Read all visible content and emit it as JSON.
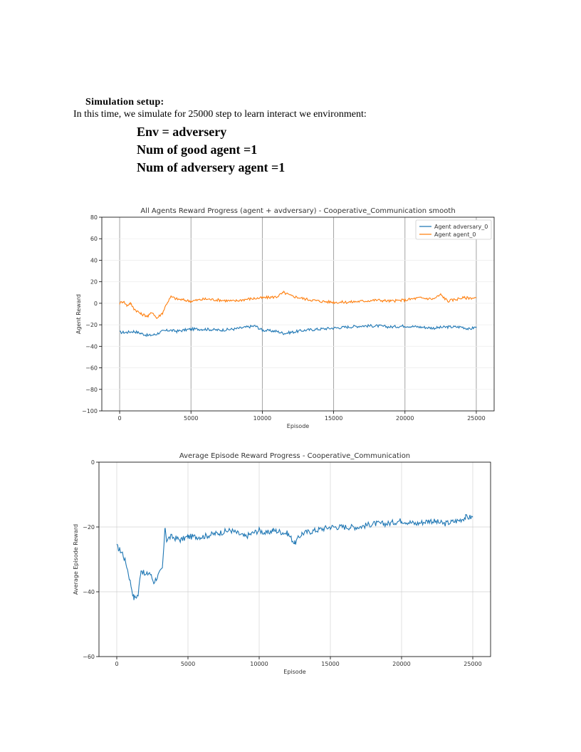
{
  "document": {
    "heading": "Simulation setup:",
    "intro": "In this time, we simulate for 25000 step to learn interact we environment:",
    "env_lines": [
      "Env  = adversery",
      "Num of good agent =1",
      "Num of adversery agent =1"
    ]
  },
  "chart_data": [
    {
      "type": "line",
      "title": "All Agents Reward Progress (agent + avdversary) - Cooperative_Communication smooth",
      "xlabel": "Episode",
      "ylabel": "Agent Reward",
      "xlim": [
        -1250,
        26250
      ],
      "ylim": [
        -100,
        80
      ],
      "xticks": [
        0,
        5000,
        10000,
        15000,
        20000,
        25000
      ],
      "yticks": [
        -100,
        -80,
        -60,
        -40,
        -20,
        0,
        20,
        40,
        60,
        80
      ],
      "grid": true,
      "legend": "top-right",
      "series": [
        {
          "name": "Agent adversary_0",
          "color": "#1f77b4",
          "x": [
            0,
            500,
            1000,
            1500,
            2000,
            2500,
            3000,
            3500,
            4000,
            5000,
            6000,
            7000,
            8000,
            9000,
            9500,
            10000,
            11000,
            11500,
            12000,
            13000,
            14000,
            15000,
            16000,
            17000,
            18000,
            19000,
            20000,
            21000,
            22000,
            23000,
            24000,
            24500,
            25000
          ],
          "y": [
            -27,
            -27,
            -26,
            -28,
            -30,
            -29,
            -26,
            -25,
            -26,
            -24,
            -24,
            -25,
            -24,
            -22,
            -21,
            -25,
            -26,
            -28,
            -27,
            -25,
            -24,
            -23,
            -22,
            -21,
            -21,
            -22,
            -21,
            -22,
            -23,
            -22,
            -22,
            -24,
            -22
          ]
        },
        {
          "name": "Agent agent_0",
          "color": "#ff7f0e",
          "x": [
            0,
            250,
            500,
            750,
            1000,
            1500,
            2000,
            2300,
            2600,
            3000,
            3300,
            3600,
            4000,
            5000,
            6000,
            7000,
            8000,
            9000,
            10000,
            11000,
            11500,
            12000,
            13000,
            14000,
            15000,
            16000,
            17000,
            18000,
            19000,
            20000,
            21000,
            22000,
            22500,
            23000,
            24000,
            25000
          ],
          "y": [
            0,
            2,
            -2,
            0,
            -5,
            -10,
            -12,
            -8,
            -14,
            -9,
            0,
            6,
            4,
            2,
            4,
            3,
            2,
            4,
            5,
            6,
            10,
            7,
            4,
            2,
            1,
            1,
            2,
            3,
            2,
            3,
            5,
            4,
            8,
            2,
            5,
            5
          ]
        }
      ]
    },
    {
      "type": "line",
      "title": "Average Episode Reward Progress - Cooperative_Communication",
      "xlabel": "Episode",
      "ylabel": "Average Episode Reward",
      "xlim": [
        -1250,
        26250
      ],
      "ylim": [
        -60,
        0
      ],
      "xticks": [
        0,
        5000,
        10000,
        15000,
        20000,
        25000
      ],
      "yticks": [
        -60,
        -40,
        -20,
        0
      ],
      "grid": true,
      "series": [
        {
          "color": "#1f77b4",
          "x": [
            0,
            200,
            400,
            700,
            1000,
            1200,
            1500,
            1700,
            2000,
            2300,
            2600,
            2900,
            3200,
            3400,
            3500,
            3800,
            4500,
            5000,
            6000,
            7000,
            8000,
            9000,
            10000,
            10500,
            11000,
            12000,
            12500,
            13000,
            14000,
            15000,
            16000,
            17000,
            18000,
            19000,
            20000,
            21000,
            22000,
            23000,
            24000,
            24500,
            25000
          ],
          "y": [
            -26,
            -27,
            -28,
            -32,
            -38,
            -42,
            -41,
            -33,
            -35,
            -34,
            -37,
            -35,
            -33,
            -20,
            -24,
            -23,
            -24,
            -23,
            -23,
            -22,
            -21,
            -23,
            -21,
            -22,
            -21,
            -22,
            -25,
            -22,
            -21,
            -20,
            -20,
            -20,
            -19,
            -19,
            -18,
            -19,
            -18,
            -19,
            -18,
            -17,
            -17
          ]
        }
      ]
    }
  ]
}
